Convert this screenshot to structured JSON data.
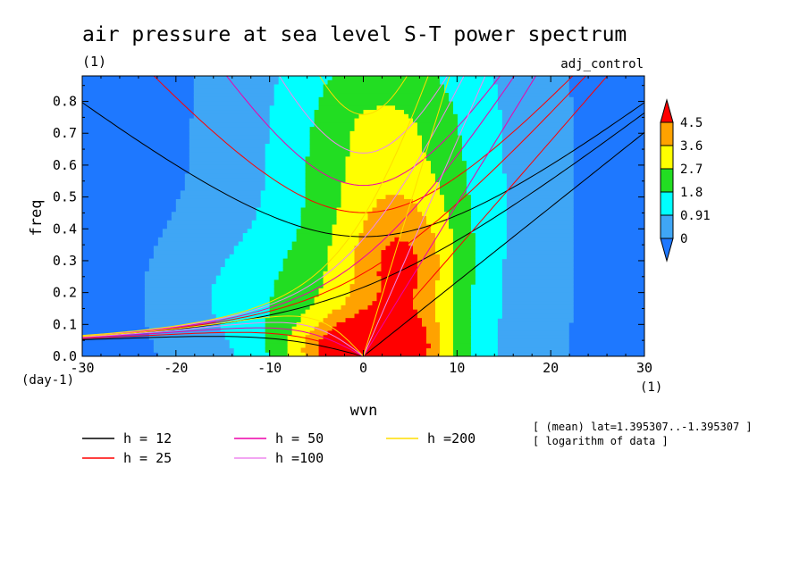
{
  "chart_data": {
    "type": "heatmap",
    "title": "air pressure at sea level S-T power spectrum",
    "title_units": "(1)",
    "experiment_label": "adj_control",
    "xlabel": "wvn",
    "ylabel": "freq",
    "x_units": "(1)",
    "y_units": "(day-1)",
    "xlim": [
      -30,
      30
    ],
    "ylim": [
      0,
      0.88
    ],
    "x_ticks": [
      -30,
      -20,
      -10,
      0,
      10,
      20,
      30
    ],
    "x_tick_labels": [
      "-30",
      "-20",
      "-10",
      "0",
      "10",
      "20",
      "30"
    ],
    "y_ticks": [
      0.0,
      0.1,
      0.2,
      0.3,
      0.4,
      0.5,
      0.6,
      0.7,
      0.8
    ],
    "y_tick_labels": [
      "0.0",
      "0.1",
      "0.2",
      "0.3",
      "0.4",
      "0.5",
      "0.6",
      "0.7",
      "0.8"
    ],
    "colorbar": {
      "levels": [
        0,
        0.91,
        1.8,
        2.7,
        3.6,
        4.5
      ],
      "level_labels": [
        "0",
        "0.91",
        "1.8",
        "2.7",
        "3.6",
        "4.5"
      ],
      "colors": [
        "#1e78ff",
        "#3fa6f5",
        "#00ffff",
        "#22dd22",
        "#ffff00",
        "#ffa200",
        "#ff0000"
      ],
      "extend": "both"
    },
    "field_note": "[ logarithm of data ]",
    "mean_note": "[ (mean) lat=1.395307..-1.395307 ]",
    "dispersion_curves": [
      {
        "name": "h = 12",
        "h": 12,
        "color": "#000000"
      },
      {
        "name": "h = 25",
        "h": 25,
        "color": "#ff0000"
      },
      {
        "name": "h = 50",
        "h": 50,
        "color": "#ee00aa"
      },
      {
        "name": "h =100",
        "h": 100,
        "color": "#ee88ee"
      },
      {
        "name": "h =200",
        "h": 200,
        "color": "#ffdd00"
      }
    ]
  }
}
